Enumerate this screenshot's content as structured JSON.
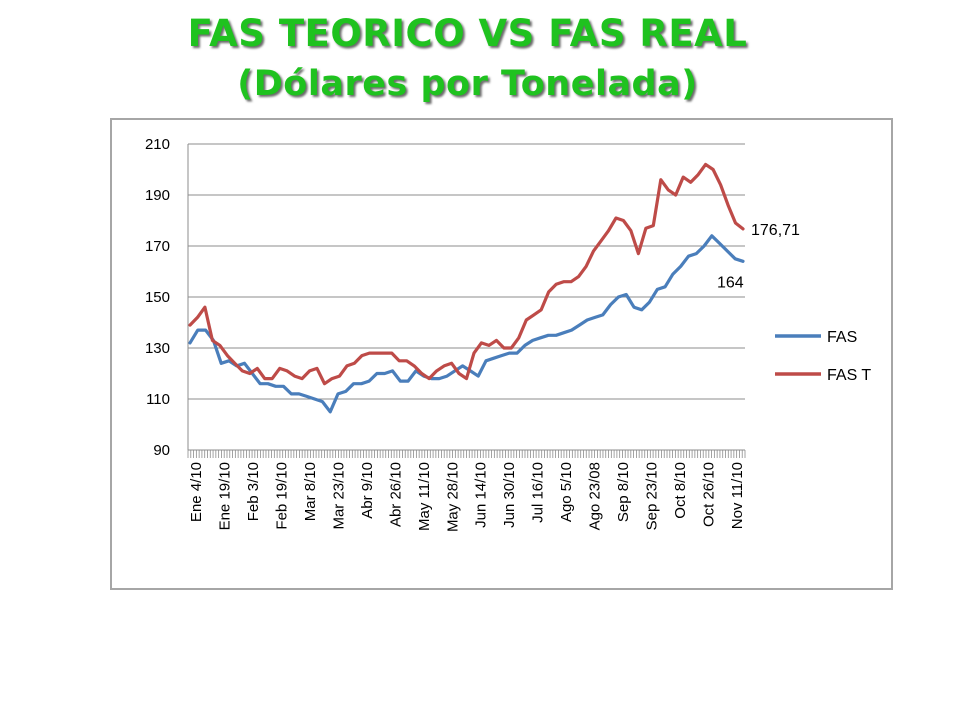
{
  "chart_data": {
    "type": "line",
    "title": "FAS TEORICO VS FAS REAL",
    "subtitle": "(Dólares por Tonelada)",
    "ylim": [
      90,
      210
    ],
    "yticks": [
      90,
      110,
      130,
      150,
      170,
      190,
      210
    ],
    "grid": "horizontal",
    "legend_position": "right",
    "x_labels": [
      "Ene 4/10",
      "Ene 19/10",
      "Feb 3/10",
      "Feb 19/10",
      "Mar 8/10",
      "Mar 23/10",
      "Abr 9/10",
      "Abr 26/10",
      "May 11/10",
      "May 28/10",
      "Jun 14/10",
      "Jun 30/10",
      "Jul 16/10",
      "Ago 5/10",
      "Ago 23/08",
      "Sep 8/10",
      "Sep 23/10",
      "Oct 8/10",
      "Oct 26/10",
      "Nov 11/10"
    ],
    "series": [
      {
        "name": "FAS",
        "color": "#4a7ebb",
        "values": [
          132,
          137,
          137,
          133,
          124,
          125,
          123,
          124,
          120,
          116,
          116,
          115,
          115,
          112,
          112,
          111,
          110,
          109,
          105,
          112,
          113,
          116,
          116,
          117,
          120,
          120,
          121,
          117,
          117,
          121,
          119,
          118,
          118,
          119,
          121,
          123,
          121,
          119,
          125,
          126,
          127,
          128,
          128,
          131,
          133,
          134,
          135,
          135,
          136,
          137,
          139,
          141,
          142,
          143,
          147,
          150,
          151,
          146,
          145,
          148,
          153,
          154,
          159,
          162,
          166,
          167,
          170,
          174,
          171,
          168,
          165,
          164
        ]
      },
      {
        "name": "FAS T",
        "color": "#be4b48",
        "values": [
          139,
          142,
          146,
          133,
          131,
          127,
          124,
          121,
          120,
          122,
          118,
          118,
          122,
          121,
          119,
          118,
          121,
          122,
          116,
          118,
          119,
          123,
          124,
          127,
          128,
          128,
          128,
          128,
          125,
          125,
          123,
          120,
          118,
          121,
          123,
          124,
          120,
          118,
          128,
          132,
          131,
          133,
          130,
          130,
          134,
          141,
          143,
          145,
          152,
          155,
          156,
          156,
          158,
          162,
          168,
          172,
          176,
          181,
          180,
          176,
          167,
          177,
          178,
          196,
          192,
          190,
          197,
          195,
          198,
          202,
          200,
          194,
          186,
          179,
          176.71
        ]
      }
    ],
    "annotations": [
      {
        "series": "FAS T",
        "text": "176,71"
      },
      {
        "series": "FAS",
        "text": "164"
      }
    ]
  }
}
